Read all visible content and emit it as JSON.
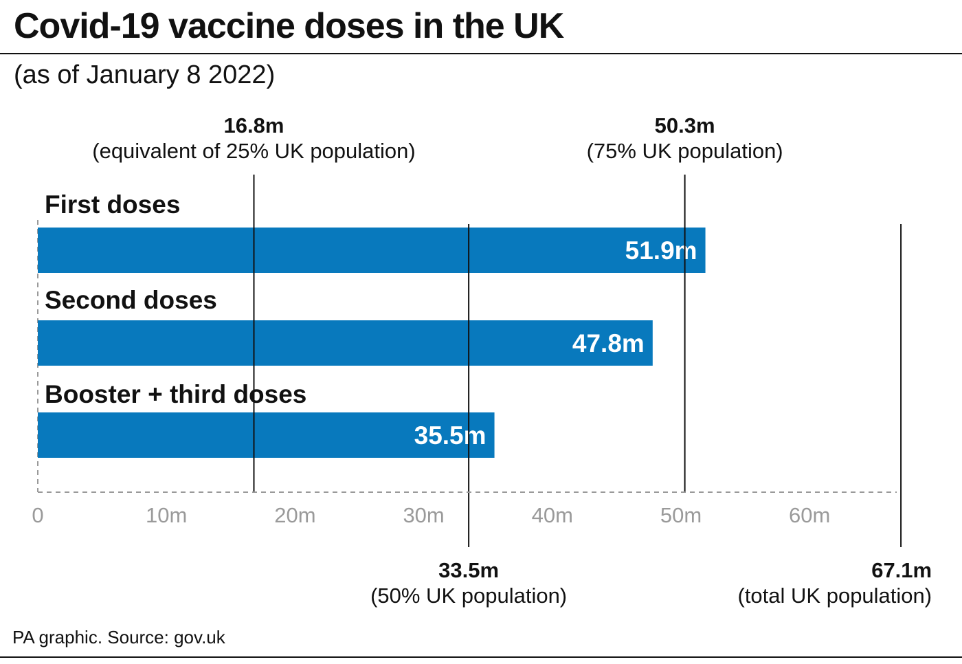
{
  "header": {
    "title": "Covid-19 vaccine doses in the UK",
    "subtitle": "(as of January 8 2022)"
  },
  "footer": {
    "source": "PA graphic. Source: gov.uk"
  },
  "colors": {
    "bar": "#0879bd",
    "axis": "#9a9a9a",
    "reference": "#111111"
  },
  "chart_data": {
    "type": "bar",
    "orientation": "horizontal",
    "categories": [
      "First doses",
      "Second doses",
      "Booster + third doses"
    ],
    "values": [
      51.9,
      47.8,
      35.5
    ],
    "value_labels": [
      "51.9m",
      "47.8m",
      "35.5m"
    ],
    "unit": "m",
    "xlim": [
      0,
      67.1
    ],
    "xticks": [
      0,
      10,
      20,
      30,
      40,
      50,
      60
    ],
    "xtick_labels": [
      "0",
      "10m",
      "20m",
      "30m",
      "40m",
      "50m",
      "60m"
    ],
    "grid": false,
    "reference_lines": [
      {
        "value": 16.8,
        "label": "16.8m",
        "note": "(equivalent of 25% UK population)",
        "position": "top"
      },
      {
        "value": 50.3,
        "label": "50.3m",
        "note": "(75% UK population)",
        "position": "top"
      },
      {
        "value": 33.5,
        "label": "33.5m",
        "note": "(50% UK population)",
        "position": "bottom"
      },
      {
        "value": 67.1,
        "label": "67.1m",
        "note": "(total UK population)",
        "position": "bottom"
      }
    ]
  }
}
